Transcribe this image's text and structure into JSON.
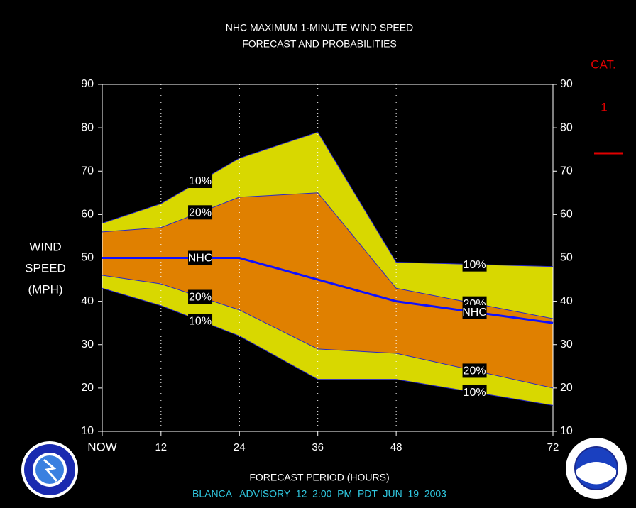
{
  "chart_data": {
    "type": "band-line",
    "title": "NHC MAXIMUM 1-MINUTE WIND SPEED",
    "subtitle": "FORECAST AND PROBABILITIES",
    "y_label": [
      "WIND",
      "SPEED",
      "(MPH)"
    ],
    "x_label": "FORECAST PERIOD (HOURS)",
    "footer": "BLANCA   ADVISORY  12  2:00  PM  PDT  JUN  19  2003",
    "category_label": "CAT.",
    "category": "1",
    "x": [
      3,
      12,
      24,
      36,
      48,
      72
    ],
    "xlim": [
      3,
      72
    ],
    "xticks": [
      {
        "value": 3,
        "label": "NOW"
      },
      12,
      24,
      36,
      48,
      72
    ],
    "ylim": [
      10,
      90
    ],
    "yticks": [
      10,
      20,
      30,
      40,
      50,
      60,
      70,
      80,
      90
    ],
    "grid": true,
    "series": [
      {
        "name": "10%",
        "color": "#2828c8",
        "values": [
          58,
          62.5,
          73,
          79,
          49,
          48
        ]
      },
      {
        "name": "20%",
        "color": "#2828c8",
        "values": [
          56,
          57,
          64,
          65,
          43,
          36
        ]
      },
      {
        "name": "NHC",
        "color": "#1010ff",
        "values": [
          50,
          50,
          50,
          45,
          40,
          35
        ]
      },
      {
        "name": "20%",
        "color": "#2828c8",
        "values": [
          46,
          44,
          38,
          29,
          28,
          20
        ]
      },
      {
        "name": "10%",
        "color": "#2828c8",
        "values": [
          43,
          39,
          32,
          22,
          22,
          16
        ]
      }
    ],
    "outer_band_color": "#d8d800",
    "inner_band_color": "#e08000"
  }
}
